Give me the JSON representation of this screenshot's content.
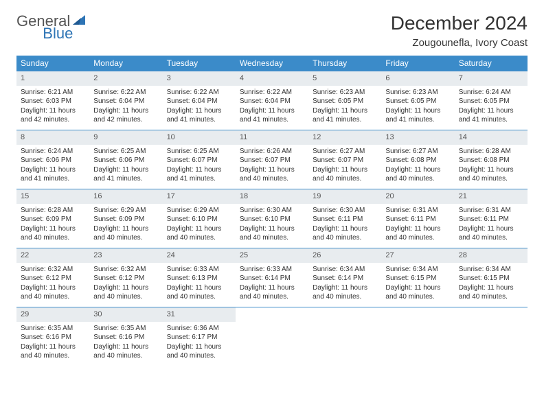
{
  "logo": {
    "gray": "General",
    "blue": "Blue"
  },
  "title": "December 2024",
  "location": "Zougounefla, Ivory Coast",
  "colors": {
    "header_bg": "#3b8bc9",
    "header_text": "#ffffff",
    "daynum_bg": "#e8ecef",
    "row_border": "#3b8bc9",
    "logo_blue": "#2d74b5"
  },
  "day_headers": [
    "Sunday",
    "Monday",
    "Tuesday",
    "Wednesday",
    "Thursday",
    "Friday",
    "Saturday"
  ],
  "weeks": [
    [
      {
        "n": "1",
        "sunrise": "Sunrise: 6:21 AM",
        "sunset": "Sunset: 6:03 PM",
        "daylight": "Daylight: 11 hours and 42 minutes."
      },
      {
        "n": "2",
        "sunrise": "Sunrise: 6:22 AM",
        "sunset": "Sunset: 6:04 PM",
        "daylight": "Daylight: 11 hours and 42 minutes."
      },
      {
        "n": "3",
        "sunrise": "Sunrise: 6:22 AM",
        "sunset": "Sunset: 6:04 PM",
        "daylight": "Daylight: 11 hours and 41 minutes."
      },
      {
        "n": "4",
        "sunrise": "Sunrise: 6:22 AM",
        "sunset": "Sunset: 6:04 PM",
        "daylight": "Daylight: 11 hours and 41 minutes."
      },
      {
        "n": "5",
        "sunrise": "Sunrise: 6:23 AM",
        "sunset": "Sunset: 6:05 PM",
        "daylight": "Daylight: 11 hours and 41 minutes."
      },
      {
        "n": "6",
        "sunrise": "Sunrise: 6:23 AM",
        "sunset": "Sunset: 6:05 PM",
        "daylight": "Daylight: 11 hours and 41 minutes."
      },
      {
        "n": "7",
        "sunrise": "Sunrise: 6:24 AM",
        "sunset": "Sunset: 6:05 PM",
        "daylight": "Daylight: 11 hours and 41 minutes."
      }
    ],
    [
      {
        "n": "8",
        "sunrise": "Sunrise: 6:24 AM",
        "sunset": "Sunset: 6:06 PM",
        "daylight": "Daylight: 11 hours and 41 minutes."
      },
      {
        "n": "9",
        "sunrise": "Sunrise: 6:25 AM",
        "sunset": "Sunset: 6:06 PM",
        "daylight": "Daylight: 11 hours and 41 minutes."
      },
      {
        "n": "10",
        "sunrise": "Sunrise: 6:25 AM",
        "sunset": "Sunset: 6:07 PM",
        "daylight": "Daylight: 11 hours and 41 minutes."
      },
      {
        "n": "11",
        "sunrise": "Sunrise: 6:26 AM",
        "sunset": "Sunset: 6:07 PM",
        "daylight": "Daylight: 11 hours and 40 minutes."
      },
      {
        "n": "12",
        "sunrise": "Sunrise: 6:27 AM",
        "sunset": "Sunset: 6:07 PM",
        "daylight": "Daylight: 11 hours and 40 minutes."
      },
      {
        "n": "13",
        "sunrise": "Sunrise: 6:27 AM",
        "sunset": "Sunset: 6:08 PM",
        "daylight": "Daylight: 11 hours and 40 minutes."
      },
      {
        "n": "14",
        "sunrise": "Sunrise: 6:28 AM",
        "sunset": "Sunset: 6:08 PM",
        "daylight": "Daylight: 11 hours and 40 minutes."
      }
    ],
    [
      {
        "n": "15",
        "sunrise": "Sunrise: 6:28 AM",
        "sunset": "Sunset: 6:09 PM",
        "daylight": "Daylight: 11 hours and 40 minutes."
      },
      {
        "n": "16",
        "sunrise": "Sunrise: 6:29 AM",
        "sunset": "Sunset: 6:09 PM",
        "daylight": "Daylight: 11 hours and 40 minutes."
      },
      {
        "n": "17",
        "sunrise": "Sunrise: 6:29 AM",
        "sunset": "Sunset: 6:10 PM",
        "daylight": "Daylight: 11 hours and 40 minutes."
      },
      {
        "n": "18",
        "sunrise": "Sunrise: 6:30 AM",
        "sunset": "Sunset: 6:10 PM",
        "daylight": "Daylight: 11 hours and 40 minutes."
      },
      {
        "n": "19",
        "sunrise": "Sunrise: 6:30 AM",
        "sunset": "Sunset: 6:11 PM",
        "daylight": "Daylight: 11 hours and 40 minutes."
      },
      {
        "n": "20",
        "sunrise": "Sunrise: 6:31 AM",
        "sunset": "Sunset: 6:11 PM",
        "daylight": "Daylight: 11 hours and 40 minutes."
      },
      {
        "n": "21",
        "sunrise": "Sunrise: 6:31 AM",
        "sunset": "Sunset: 6:11 PM",
        "daylight": "Daylight: 11 hours and 40 minutes."
      }
    ],
    [
      {
        "n": "22",
        "sunrise": "Sunrise: 6:32 AM",
        "sunset": "Sunset: 6:12 PM",
        "daylight": "Daylight: 11 hours and 40 minutes."
      },
      {
        "n": "23",
        "sunrise": "Sunrise: 6:32 AM",
        "sunset": "Sunset: 6:12 PM",
        "daylight": "Daylight: 11 hours and 40 minutes."
      },
      {
        "n": "24",
        "sunrise": "Sunrise: 6:33 AM",
        "sunset": "Sunset: 6:13 PM",
        "daylight": "Daylight: 11 hours and 40 minutes."
      },
      {
        "n": "25",
        "sunrise": "Sunrise: 6:33 AM",
        "sunset": "Sunset: 6:14 PM",
        "daylight": "Daylight: 11 hours and 40 minutes."
      },
      {
        "n": "26",
        "sunrise": "Sunrise: 6:34 AM",
        "sunset": "Sunset: 6:14 PM",
        "daylight": "Daylight: 11 hours and 40 minutes."
      },
      {
        "n": "27",
        "sunrise": "Sunrise: 6:34 AM",
        "sunset": "Sunset: 6:15 PM",
        "daylight": "Daylight: 11 hours and 40 minutes."
      },
      {
        "n": "28",
        "sunrise": "Sunrise: 6:34 AM",
        "sunset": "Sunset: 6:15 PM",
        "daylight": "Daylight: 11 hours and 40 minutes."
      }
    ],
    [
      {
        "n": "29",
        "sunrise": "Sunrise: 6:35 AM",
        "sunset": "Sunset: 6:16 PM",
        "daylight": "Daylight: 11 hours and 40 minutes."
      },
      {
        "n": "30",
        "sunrise": "Sunrise: 6:35 AM",
        "sunset": "Sunset: 6:16 PM",
        "daylight": "Daylight: 11 hours and 40 minutes."
      },
      {
        "n": "31",
        "sunrise": "Sunrise: 6:36 AM",
        "sunset": "Sunset: 6:17 PM",
        "daylight": "Daylight: 11 hours and 40 minutes."
      },
      null,
      null,
      null,
      null
    ]
  ]
}
